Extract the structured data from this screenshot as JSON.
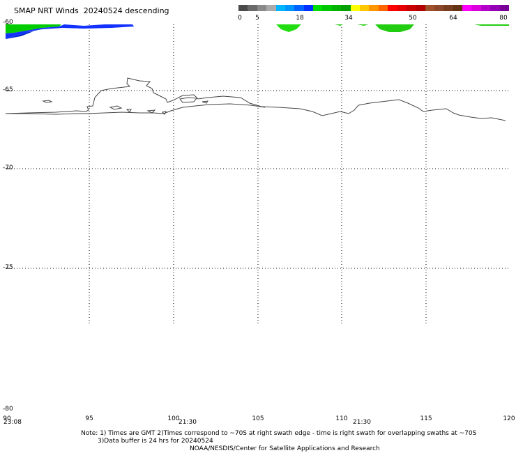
{
  "title": "SMAP NRT Winds  20240524 descending",
  "colorbar": {
    "labels": [
      "0",
      "5",
      "18",
      "34",
      "50",
      "64",
      "80"
    ],
    "colors": [
      "#4a4a4a",
      "#6a6a6a",
      "#8a8a8a",
      "#aaaaaa",
      "#00b4ff",
      "#0096ff",
      "#0064ff",
      "#0032ff",
      "#00dc00",
      "#00c800",
      "#00b400",
      "#00a000",
      "#ffff00",
      "#ffc800",
      "#ff9600",
      "#ff6400",
      "#ff0000",
      "#e60000",
      "#c80000",
      "#b40000",
      "#a05028",
      "#8c4628",
      "#783c1e",
      "#643214",
      "#ff00ff",
      "#dc00dc",
      "#b400c8",
      "#9600b4",
      "#780096"
    ]
  },
  "lat_labels": [
    "-60",
    "-65",
    "-70",
    "-75",
    "-80"
  ],
  "lon_labels": [
    "90",
    "95",
    "100",
    "105",
    "110",
    "115",
    "120"
  ],
  "time_labels": [
    "23:08",
    "21:30",
    "21:30"
  ],
  "notes": {
    "line1": "Note: 1) Times are GMT 2)Times correspond to ~70S at right swath edge - time is right swath for overlapping swaths at ~70S",
    "line2": "3)Data buffer is 24 hrs for 20240524",
    "line3": "NOAA/NESDIS/Center for Satellite Applications and Research"
  }
}
